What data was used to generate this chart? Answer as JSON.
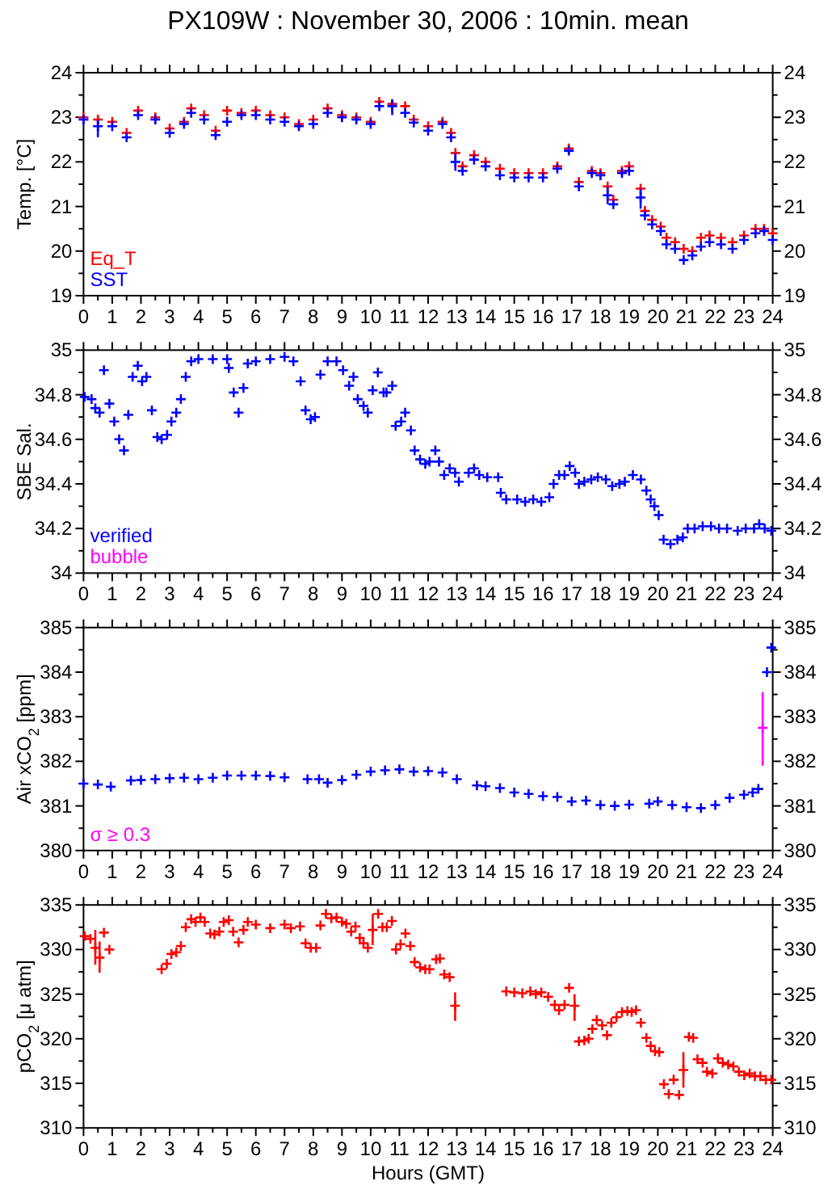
{
  "chart_data": [
    {
      "type": "scatter",
      "title": "PX109W : November 30, 2006 : 10min. mean",
      "ylabel": "Temp. [°C]",
      "marker": "cross",
      "legend": "bottom left",
      "xlim": [
        0,
        24
      ],
      "xticks": [
        0,
        {
          "value": 0.5,
          "label": null
        },
        1,
        {
          "value": 1.5,
          "label": null
        },
        2,
        {
          "value": 2.5,
          "label": null
        },
        3,
        {
          "value": 3.5,
          "label": null
        },
        4,
        {
          "value": 4.5,
          "label": null
        },
        5,
        {
          "value": 5.5,
          "label": null
        },
        6,
        {
          "value": 6.5,
          "label": null
        },
        7,
        {
          "value": 7.5,
          "label": null
        },
        8,
        {
          "value": 8.5,
          "label": null
        },
        9,
        {
          "value": 9.5,
          "label": null
        },
        10,
        {
          "value": 10.5,
          "label": null
        },
        11,
        {
          "value": 11.5,
          "label": null
        },
        12,
        {
          "value": 12.5,
          "label": null
        },
        13,
        {
          "value": 13.5,
          "label": null
        },
        14,
        {
          "value": 14.5,
          "label": null
        },
        15,
        {
          "value": 15.5,
          "label": null
        },
        16,
        {
          "value": 16.5,
          "label": null
        },
        17,
        {
          "value": 17.5,
          "label": null
        },
        18,
        {
          "value": 18.5,
          "label": null
        },
        19,
        {
          "value": 19.5,
          "label": null
        },
        20,
        {
          "value": 20.5,
          "label": null
        },
        21,
        {
          "value": 21.5,
          "label": null
        },
        22,
        {
          "value": 22.5,
          "label": null
        },
        23,
        {
          "value": 23.5,
          "label": null
        },
        24
      ],
      "ylim": [
        19,
        24
      ],
      "yticks": [
        19,
        {
          "value": 19.5,
          "label": null
        },
        20,
        {
          "value": 20.5,
          "label": null
        },
        21,
        {
          "value": 21.5,
          "label": null
        },
        22,
        {
          "value": 22.5,
          "label": null
        },
        23,
        {
          "value": 23.5,
          "label": null
        },
        24
      ],
      "y2lim": [
        19,
        24
      ],
      "y2ticks": [
        19,
        {
          "value": 19.5,
          "label": null
        },
        20,
        {
          "value": 20.5,
          "label": null
        },
        21,
        {
          "value": 21.5,
          "label": null
        },
        22,
        {
          "value": 22.5,
          "label": null
        },
        23,
        {
          "value": 23.5,
          "label": null
        },
        24
      ],
      "series": [
        {
          "name": "Eq_T",
          "color": "#ff0000",
          "x": [
            0,
            0.5,
            1,
            1.5,
            1.9,
            2.5,
            3,
            3.5,
            3.75,
            4.2,
            4.6,
            5,
            5.5,
            6,
            6.5,
            7,
            7.5,
            8,
            8.5,
            9,
            9.5,
            10,
            10.3,
            10.75,
            11.2,
            11.5,
            12,
            12.5,
            12.8,
            12.95,
            13.2,
            13.6,
            14,
            14.5,
            15,
            15.5,
            16,
            16.5,
            16.9,
            17.25,
            17.7,
            18,
            18.25,
            18.45,
            18.75,
            19,
            19.4,
            19.55,
            19.8,
            20.1,
            20.3,
            20.6,
            20.9,
            21.2,
            21.5,
            21.8,
            22.2,
            22.6,
            23,
            23.4,
            23.7,
            24
          ],
          "values": [
            23.0,
            22.95,
            22.9,
            22.65,
            23.15,
            23.0,
            22.75,
            22.9,
            23.2,
            23.05,
            22.7,
            23.15,
            23.1,
            23.15,
            23.05,
            23.0,
            22.85,
            22.95,
            23.2,
            23.05,
            23.0,
            22.9,
            23.35,
            23.3,
            23.25,
            22.95,
            22.8,
            22.9,
            22.65,
            22.2,
            21.9,
            22.15,
            22.0,
            21.85,
            21.75,
            21.75,
            21.75,
            21.9,
            22.3,
            21.55,
            21.8,
            21.75,
            21.45,
            21.15,
            21.8,
            21.9,
            21.4,
            20.9,
            20.7,
            20.55,
            20.3,
            20.2,
            20.05,
            20.0,
            20.3,
            20.35,
            20.3,
            20.2,
            20.35,
            20.5,
            20.5,
            20.4
          ]
        },
        {
          "name": "SST",
          "color": "#0000ff",
          "x": [
            0,
            0.5,
            1,
            1.5,
            1.9,
            2.5,
            3,
            3.5,
            3.75,
            4.2,
            4.6,
            5,
            5.5,
            6,
            6.5,
            7,
            7.5,
            8,
            8.5,
            9,
            9.5,
            10,
            10.3,
            10.75,
            11.2,
            11.5,
            12,
            12.5,
            12.8,
            12.95,
            13.2,
            13.6,
            14,
            14.5,
            15,
            15.5,
            16,
            16.5,
            16.9,
            17.25,
            17.7,
            18,
            18.25,
            18.45,
            18.75,
            19,
            19.4,
            19.55,
            19.8,
            20.1,
            20.3,
            20.6,
            20.9,
            21.2,
            21.5,
            21.8,
            22.2,
            22.6,
            23,
            23.4,
            23.7,
            24
          ],
          "values": [
            22.95,
            22.8,
            22.8,
            22.55,
            23.05,
            22.95,
            22.65,
            22.85,
            23.1,
            22.95,
            22.6,
            22.9,
            23.05,
            23.05,
            22.95,
            22.9,
            22.8,
            22.85,
            23.1,
            23.0,
            22.95,
            22.85,
            23.25,
            23.25,
            23.1,
            22.88,
            22.7,
            22.85,
            22.55,
            22.0,
            21.8,
            22.05,
            21.9,
            21.7,
            21.65,
            21.65,
            21.65,
            21.85,
            22.25,
            21.45,
            21.75,
            21.7,
            21.25,
            21.05,
            21.75,
            21.8,
            21.2,
            20.8,
            20.6,
            20.45,
            20.15,
            20.05,
            19.8,
            19.9,
            20.1,
            20.2,
            20.15,
            20.05,
            20.25,
            20.4,
            20.45,
            20.25
          ],
          "errors": [
            null,
            [
              22.55,
              22.95
            ],
            null,
            null,
            null,
            null,
            null,
            null,
            null,
            null,
            null,
            null,
            null,
            null,
            null,
            null,
            null,
            null,
            null,
            null,
            null,
            null,
            null,
            [
              23.05,
              23.4
            ],
            null,
            null,
            null,
            null,
            null,
            [
              21.8,
              22.2
            ],
            null,
            null,
            null,
            null,
            null,
            null,
            null,
            null,
            null,
            null,
            null,
            null,
            [
              21.05,
              21.45
            ],
            null,
            null,
            null,
            [
              20.95,
              21.4
            ],
            null,
            null,
            null,
            null,
            null,
            null,
            null,
            null,
            null,
            null,
            null,
            null,
            null,
            null,
            null
          ]
        }
      ]
    },
    {
      "type": "scatter",
      "ylabel": "SBE Sal.",
      "marker": "cross",
      "legend": "bottom left",
      "xlim": [
        0,
        24
      ],
      "xticks": [
        0,
        {
          "value": 0.5,
          "label": null
        },
        1,
        {
          "value": 1.5,
          "label": null
        },
        2,
        {
          "value": 2.5,
          "label": null
        },
        3,
        {
          "value": 3.5,
          "label": null
        },
        4,
        {
          "value": 4.5,
          "label": null
        },
        5,
        {
          "value": 5.5,
          "label": null
        },
        6,
        {
          "value": 6.5,
          "label": null
        },
        7,
        {
          "value": 7.5,
          "label": null
        },
        8,
        {
          "value": 8.5,
          "label": null
        },
        9,
        {
          "value": 9.5,
          "label": null
        },
        10,
        {
          "value": 10.5,
          "label": null
        },
        11,
        {
          "value": 11.5,
          "label": null
        },
        12,
        {
          "value": 12.5,
          "label": null
        },
        13,
        {
          "value": 13.5,
          "label": null
        },
        14,
        {
          "value": 14.5,
          "label": null
        },
        15,
        {
          "value": 15.5,
          "label": null
        },
        16,
        {
          "value": 16.5,
          "label": null
        },
        17,
        {
          "value": 17.5,
          "label": null
        },
        18,
        {
          "value": 18.5,
          "label": null
        },
        19,
        {
          "value": 19.5,
          "label": null
        },
        20,
        {
          "value": 20.5,
          "label": null
        },
        21,
        {
          "value": 21.5,
          "label": null
        },
        22,
        {
          "value": 22.5,
          "label": null
        },
        23,
        {
          "value": 23.5,
          "label": null
        },
        24
      ],
      "ylim": [
        34,
        35
      ],
      "yticks": [
        34,
        {
          "value": 34.1,
          "label": null
        },
        34.2,
        {
          "value": 34.3,
          "label": null
        },
        34.4,
        {
          "value": 34.5,
          "label": null
        },
        34.6,
        {
          "value": 34.7,
          "label": null
        },
        34.8,
        {
          "value": 34.9,
          "label": null
        },
        35
      ],
      "y2lim": [
        34,
        35
      ],
      "y2ticks": [
        34,
        {
          "value": 34.1,
          "label": null
        },
        34.2,
        {
          "value": 34.3,
          "label": null
        },
        34.4,
        {
          "value": 34.5,
          "label": null
        },
        34.6,
        {
          "value": 34.7,
          "label": null
        },
        34.8,
        {
          "value": 34.9,
          "label": null
        },
        35
      ],
      "series": [
        {
          "name": "verified",
          "color": "#0000ff",
          "x": [
            0.04,
            0.28,
            0.41,
            0.56,
            0.71,
            0.9,
            1.07,
            1.24,
            1.41,
            1.56,
            1.71,
            1.89,
            2.04,
            2.19,
            2.38,
            2.57,
            2.72,
            2.91,
            3.06,
            3.23,
            3.39,
            3.56,
            3.75,
            4,
            4.5,
            5,
            5.06,
            5.23,
            5.4,
            5.57,
            5.72,
            6,
            6.5,
            7,
            7.31,
            7.56,
            7.73,
            7.91,
            8.06,
            8.25,
            8.5,
            8.81,
            9.04,
            9.25,
            9.4,
            9.55,
            9.75,
            9.9,
            10.07,
            10.25,
            10.45,
            10.55,
            10.75,
            10.87,
            11.06,
            11.2,
            11.4,
            11.53,
            11.72,
            11.9,
            12.05,
            12.25,
            12.38,
            12.56,
            12.75,
            12.94,
            13.07,
            13.41,
            13.6,
            13.78,
            14.06,
            14.44,
            14.53,
            14.72,
            15.1,
            15.38,
            15.66,
            15.94,
            16.22,
            16.37,
            16.56,
            16.75,
            16.93,
            17.12,
            17.25,
            17.44,
            17.68,
            17.91,
            18.19,
            18.41,
            18.66,
            18.85,
            19.13,
            19.41,
            19.6,
            19.75,
            19.88,
            20.03,
            20.2,
            20.44,
            20.68,
            20.87,
            21.04,
            21.28,
            21.56,
            21.85,
            22.13,
            22.41,
            22.78,
            23.06,
            23.35,
            23.53,
            23.72,
            23.95
          ],
          "values": [
            34.79,
            34.78,
            34.74,
            34.72,
            34.91,
            34.76,
            34.68,
            34.6,
            34.55,
            34.71,
            34.88,
            34.93,
            34.86,
            34.88,
            34.73,
            34.61,
            34.6,
            34.62,
            34.68,
            34.72,
            34.78,
            34.88,
            34.95,
            34.96,
            34.96,
            34.96,
            34.92,
            34.81,
            34.72,
            34.83,
            34.94,
            34.95,
            34.96,
            34.97,
            34.95,
            34.86,
            34.73,
            34.69,
            34.7,
            34.89,
            34.95,
            34.95,
            34.91,
            34.84,
            34.88,
            34.78,
            34.75,
            34.72,
            34.82,
            34.9,
            34.81,
            34.81,
            34.84,
            34.66,
            34.68,
            34.72,
            34.64,
            34.55,
            34.51,
            34.49,
            34.5,
            34.55,
            34.5,
            34.44,
            34.47,
            34.45,
            34.41,
            34.45,
            34.47,
            34.44,
            34.43,
            34.43,
            34.36,
            34.33,
            34.33,
            34.32,
            34.33,
            34.32,
            34.34,
            34.4,
            34.44,
            34.44,
            34.48,
            34.45,
            34.4,
            34.41,
            34.42,
            34.43,
            34.42,
            34.39,
            34.4,
            34.41,
            34.44,
            34.42,
            34.37,
            34.33,
            34.3,
            34.26,
            34.15,
            34.13,
            34.15,
            34.16,
            34.2,
            34.2,
            34.21,
            34.21,
            34.2,
            34.2,
            34.19,
            34.2,
            34.2,
            34.22,
            34.2,
            34.19
          ]
        },
        {
          "name": "bubble",
          "color": "#ff00ff"
        }
      ]
    },
    {
      "type": "scatter",
      "ylabel": "Air xCO$_{2}$ [ppm]",
      "marker": "cross",
      "legend": "bottom left",
      "xlim": [
        0,
        24
      ],
      "xticks": [
        0,
        {
          "value": 0.5,
          "label": null
        },
        1,
        {
          "value": 1.5,
          "label": null
        },
        2,
        {
          "value": 2.5,
          "label": null
        },
        3,
        {
          "value": 3.5,
          "label": null
        },
        4,
        {
          "value": 4.5,
          "label": null
        },
        5,
        {
          "value": 5.5,
          "label": null
        },
        6,
        {
          "value": 6.5,
          "label": null
        },
        7,
        {
          "value": 7.5,
          "label": null
        },
        8,
        {
          "value": 8.5,
          "label": null
        },
        9,
        {
          "value": 9.5,
          "label": null
        },
        10,
        {
          "value": 10.5,
          "label": null
        },
        11,
        {
          "value": 11.5,
          "label": null
        },
        12,
        {
          "value": 12.5,
          "label": null
        },
        13,
        {
          "value": 13.5,
          "label": null
        },
        14,
        {
          "value": 14.5,
          "label": null
        },
        15,
        {
          "value": 15.5,
          "label": null
        },
        16,
        {
          "value": 16.5,
          "label": null
        },
        17,
        {
          "value": 17.5,
          "label": null
        },
        18,
        {
          "value": 18.5,
          "label": null
        },
        19,
        {
          "value": 19.5,
          "label": null
        },
        20,
        {
          "value": 20.5,
          "label": null
        },
        21,
        {
          "value": 21.5,
          "label": null
        },
        22,
        {
          "value": 22.5,
          "label": null
        },
        23,
        {
          "value": 23.5,
          "label": null
        },
        24
      ],
      "ylim": [
        380,
        385
      ],
      "yticks": [
        380,
        {
          "value": 380.5,
          "label": null
        },
        381,
        {
          "value": 381.5,
          "label": null
        },
        382,
        {
          "value": 382.5,
          "label": null
        },
        383,
        {
          "value": 383.5,
          "label": null
        },
        384,
        {
          "value": 384.5,
          "label": null
        },
        385
      ],
      "y2lim": [
        380,
        385
      ],
      "y2ticks": [
        380,
        {
          "value": 380.5,
          "label": null
        },
        381,
        {
          "value": 381.5,
          "label": null
        },
        382,
        {
          "value": 382.5,
          "label": null
        },
        383,
        {
          "value": 383.5,
          "label": null
        },
        384,
        {
          "value": 384.5,
          "label": null
        },
        385
      ],
      "series": [
        {
          "color": "#0000ff",
          "x": [
            0,
            0.5,
            0.95,
            1.65,
            2,
            2.5,
            3,
            3.5,
            4,
            4.5,
            5,
            5.5,
            6,
            6.5,
            7,
            7.8,
            8.2,
            8.5,
            9,
            9.5,
            10,
            10.5,
            11,
            11.5,
            12,
            12.5,
            13,
            13.7,
            14,
            14.5,
            15,
            15.5,
            16,
            16.5,
            17,
            17.5,
            18,
            18.5,
            19,
            19.7,
            20,
            20.5,
            21,
            21.5,
            22,
            22.5,
            23,
            23.3,
            23.5,
            23.8,
            23.95
          ],
          "values": [
            381.5,
            381.48,
            381.43,
            381.57,
            381.58,
            381.6,
            381.62,
            381.63,
            381.6,
            381.63,
            381.68,
            381.68,
            381.68,
            381.67,
            381.64,
            381.6,
            381.6,
            381.52,
            381.58,
            381.7,
            381.77,
            381.8,
            381.82,
            381.77,
            381.78,
            381.75,
            381.6,
            381.46,
            381.44,
            381.4,
            381.3,
            381.27,
            381.22,
            381.2,
            381.1,
            381.12,
            381.02,
            381.0,
            381.03,
            381.05,
            381.1,
            381.02,
            380.97,
            380.95,
            381.02,
            381.18,
            381.25,
            381.3,
            381.38,
            384.0,
            384.55
          ]
        },
        {
          "name": "σ ≥ 0.3",
          "color": "#ff00ff",
          "x": [
            23.65
          ],
          "values": [
            382.75
          ],
          "errors": [
            [
              381.9,
              383.55
            ]
          ]
        }
      ]
    },
    {
      "type": "scatter",
      "ylabel": "pCO$_{2}$ [μ atm]",
      "xlabel": "Hours (GMT)",
      "marker": "cross",
      "xlim": [
        0,
        24
      ],
      "xticks": [
        0,
        {
          "value": 0.5,
          "label": null
        },
        1,
        {
          "value": 1.5,
          "label": null
        },
        2,
        {
          "value": 2.5,
          "label": null
        },
        3,
        {
          "value": 3.5,
          "label": null
        },
        4,
        {
          "value": 4.5,
          "label": null
        },
        5,
        {
          "value": 5.5,
          "label": null
        },
        6,
        {
          "value": 6.5,
          "label": null
        },
        7,
        {
          "value": 7.5,
          "label": null
        },
        8,
        {
          "value": 8.5,
          "label": null
        },
        9,
        {
          "value": 9.5,
          "label": null
        },
        10,
        {
          "value": 10.5,
          "label": null
        },
        11,
        {
          "value": 11.5,
          "label": null
        },
        12,
        {
          "value": 12.5,
          "label": null
        },
        13,
        {
          "value": 13.5,
          "label": null
        },
        14,
        {
          "value": 14.5,
          "label": null
        },
        15,
        {
          "value": 15.5,
          "label": null
        },
        16,
        {
          "value": 16.5,
          "label": null
        },
        17,
        {
          "value": 17.5,
          "label": null
        },
        18,
        {
          "value": 18.5,
          "label": null
        },
        19,
        {
          "value": 19.5,
          "label": null
        },
        20,
        {
          "value": 20.5,
          "label": null
        },
        21,
        {
          "value": 21.5,
          "label": null
        },
        22,
        {
          "value": 22.5,
          "label": null
        },
        23,
        {
          "value": 23.5,
          "label": null
        },
        24
      ],
      "ylim": [
        310,
        335
      ],
      "yticks": [
        310,
        {
          "value": 312.5,
          "label": null
        },
        315,
        {
          "value": 317.5,
          "label": null
        },
        320,
        {
          "value": 322.5,
          "label": null
        },
        325,
        {
          "value": 327.5,
          "label": null
        },
        330,
        {
          "value": 332.5,
          "label": null
        },
        335
      ],
      "y2lim": [
        310,
        335
      ],
      "y2ticks": [
        310,
        {
          "value": 312.5,
          "label": null
        },
        315,
        {
          "value": 317.5,
          "label": null
        },
        320,
        {
          "value": 322.5,
          "label": null
        },
        325,
        {
          "value": 327.5,
          "label": null
        },
        330,
        {
          "value": 332.5,
          "label": null
        },
        335
      ],
      "series": [
        {
          "color": "#ff0000",
          "x": [
            0.04,
            0.24,
            0.41,
            0.56,
            0.71,
            0.9,
            2.72,
            2.9,
            3.06,
            3.23,
            3.39,
            3.56,
            3.75,
            3.9,
            4.07,
            4.22,
            4.41,
            4.56,
            4.73,
            4.88,
            5.06,
            5.21,
            5.4,
            5.57,
            5.72,
            6,
            6.5,
            7,
            7.22,
            7.54,
            7.73,
            7.91,
            8.1,
            8.25,
            8.44,
            8.63,
            8.81,
            9,
            9.15,
            9.32,
            9.47,
            9.62,
            9.75,
            9.9,
            10.07,
            10.26,
            10.41,
            10.56,
            10.74,
            10.88,
            11.04,
            11.21,
            11.38,
            11.53,
            11.72,
            11.9,
            12.05,
            12.28,
            12.41,
            12.56,
            12.75,
            12.94,
            14.72,
            15,
            15.28,
            15.56,
            15.75,
            15.94,
            16.18,
            16.41,
            16.56,
            16.75,
            16.91,
            17.1,
            17.25,
            17.44,
            17.59,
            17.72,
            17.87,
            18.06,
            18.23,
            18.38,
            18.56,
            18.75,
            18.94,
            19.09,
            19.24,
            19.41,
            19.6,
            19.75,
            19.9,
            20.05,
            20.21,
            20.38,
            20.55,
            20.74,
            20.89,
            21.08,
            21.23,
            21.38,
            21.56,
            21.71,
            21.9,
            22.09,
            22.26,
            22.45,
            22.63,
            22.82,
            23.01,
            23.2,
            23.38,
            23.57,
            23.76,
            23.95
          ],
          "values": [
            331.5,
            331.2,
            330.2,
            329.1,
            331.9,
            330.0,
            327.8,
            328.4,
            329.5,
            329.7,
            330.4,
            332.5,
            333.4,
            333.1,
            333.6,
            333.1,
            331.8,
            331.7,
            332.0,
            333.1,
            333.3,
            332.0,
            330.8,
            332.2,
            333.1,
            332.8,
            332.4,
            332.8,
            332.4,
            332.6,
            330.7,
            330.2,
            330.2,
            332.7,
            334.0,
            333.5,
            333.6,
            333.1,
            332.9,
            332.0,
            332.6,
            331.3,
            330.7,
            330.2,
            332.2,
            334.0,
            332.5,
            332.5,
            333.2,
            330.0,
            330.6,
            331.8,
            330.4,
            328.6,
            328.0,
            327.8,
            327.8,
            328.9,
            329.0,
            327.2,
            326.9,
            323.7,
            325.3,
            325.2,
            325.1,
            325.3,
            325.0,
            325.2,
            324.7,
            323.8,
            323.2,
            323.8,
            325.7,
            323.7,
            319.7,
            319.8,
            320.0,
            321.1,
            322.1,
            321.5,
            320.4,
            321.8,
            322.4,
            323.0,
            323.1,
            323.0,
            323.2,
            321.8,
            320.1,
            319.2,
            318.6,
            318.5,
            314.9,
            313.8,
            315.4,
            313.7,
            316.5,
            320.2,
            320.1,
            317.7,
            317.3,
            316.3,
            316.1,
            317.8,
            317.3,
            317.1,
            316.9,
            316.3,
            315.9,
            316.1,
            315.8,
            315.8,
            315.4,
            315.4
          ],
          "errors": [
            null,
            null,
            [
              328.3,
              332.2
            ],
            [
              327.4,
              330.9
            ],
            null,
            null,
            null,
            null,
            null,
            null,
            null,
            null,
            null,
            null,
            null,
            null,
            null,
            null,
            null,
            null,
            null,
            null,
            null,
            null,
            null,
            null,
            null,
            null,
            null,
            null,
            null,
            null,
            null,
            null,
            null,
            null,
            null,
            null,
            null,
            null,
            null,
            null,
            null,
            null,
            [
              330.5,
              334.0
            ],
            null,
            null,
            null,
            null,
            null,
            null,
            null,
            null,
            null,
            null,
            null,
            null,
            null,
            null,
            null,
            null,
            [
              322.0,
              325.2
            ],
            null,
            null,
            null,
            null,
            null,
            null,
            null,
            null,
            null,
            null,
            null,
            [
              322.0,
              325.0
            ],
            null,
            null,
            null,
            null,
            null,
            null,
            null,
            null,
            null,
            null,
            null,
            null,
            null,
            null,
            null,
            null,
            null,
            null,
            null,
            null,
            null,
            null,
            [
              314.5,
              318.5
            ],
            null,
            null,
            null,
            null,
            null,
            null,
            null,
            null,
            null,
            null,
            null,
            null,
            null,
            null,
            null,
            null,
            null
          ]
        }
      ]
    }
  ]
}
